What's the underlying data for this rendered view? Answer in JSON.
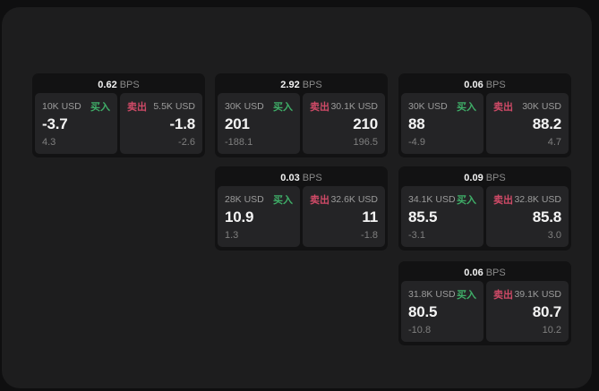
{
  "labels": {
    "bps": "BPS",
    "buy": "买入",
    "sell": "卖出"
  },
  "colors": {
    "background": "#0f0f10",
    "surface": "#1d1d1e",
    "card": "#121213",
    "tile": "#242426",
    "buy_green": "#3fae68",
    "sell_red": "#cf4a67",
    "text_primary": "#f4f4f4",
    "text_muted": "#9c9c9c",
    "text_faint": "#7f7f7f"
  },
  "cards": [
    {
      "bps": "0.62",
      "buy": {
        "size": "10K USD",
        "price": "-3.7",
        "change": "4.3"
      },
      "sell": {
        "size": "5.5K USD",
        "price": "-1.8",
        "change": "-2.6"
      }
    },
    {
      "bps": "2.92",
      "buy": {
        "size": "30K USD",
        "price": "201",
        "change": "-188.1"
      },
      "sell": {
        "size": "30.1K USD",
        "price": "210",
        "change": "196.5"
      }
    },
    {
      "bps": "0.06",
      "buy": {
        "size": "30K USD",
        "price": "88",
        "change": "-4.9"
      },
      "sell": {
        "size": "30K USD",
        "price": "88.2",
        "change": "4.7"
      }
    },
    {
      "bps": "0.03",
      "buy": {
        "size": "28K USD",
        "price": "10.9",
        "change": "1.3"
      },
      "sell": {
        "size": "32.6K USD",
        "price": "11",
        "change": "-1.8"
      }
    },
    {
      "bps": "0.09",
      "buy": {
        "size": "34.1K USD",
        "price": "85.5",
        "change": "-3.1"
      },
      "sell": {
        "size": "32.8K USD",
        "price": "85.8",
        "change": "3.0"
      }
    },
    {
      "bps": "0.06",
      "buy": {
        "size": "31.8K USD",
        "price": "80.5",
        "change": "-10.8"
      },
      "sell": {
        "size": "39.1K USD",
        "price": "80.7",
        "change": "10.2"
      }
    }
  ]
}
